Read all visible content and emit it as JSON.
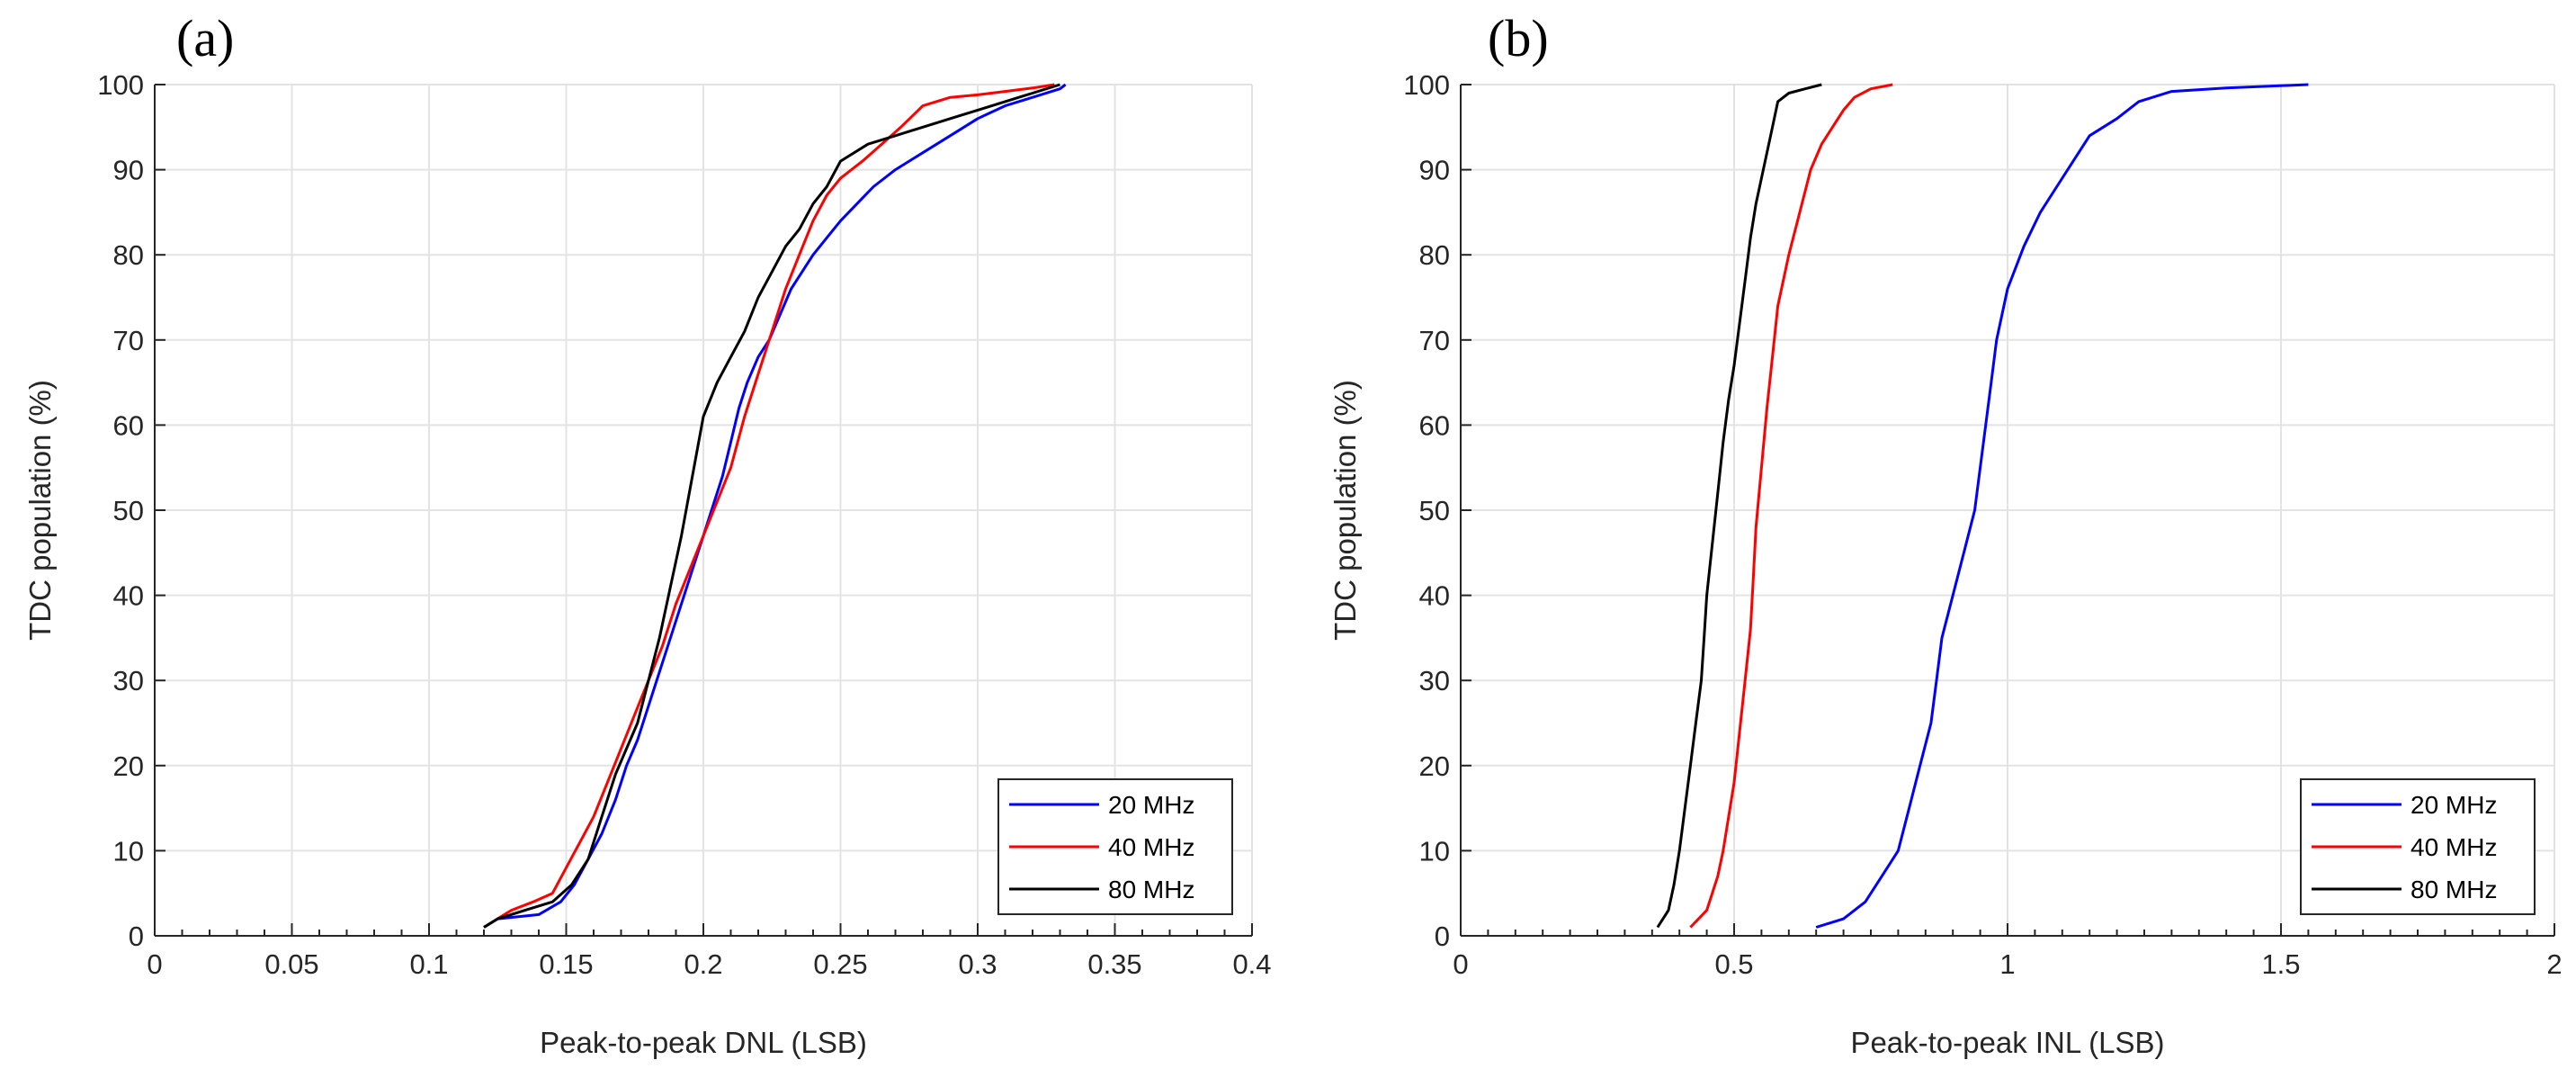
{
  "chart_data": [
    {
      "type": "line",
      "panel_label": "(a)",
      "title": "",
      "xlabel": "Peak-to-peak DNL (LSB)",
      "ylabel": "TDC population (%)",
      "xlim": [
        0,
        0.4
      ],
      "ylim": [
        0,
        100
      ],
      "xticks": [
        0,
        0.05,
        0.1,
        0.15,
        0.2,
        0.25,
        0.3,
        0.35,
        0.4
      ],
      "xtick_labels": [
        "0",
        "0.05",
        "0.1",
        "0.15",
        "0.2",
        "0.25",
        "0.3",
        "0.35",
        "0.4"
      ],
      "yticks": [
        0,
        10,
        20,
        30,
        40,
        50,
        60,
        70,
        80,
        90,
        100
      ],
      "ytick_labels": [
        "0",
        "10",
        "20",
        "30",
        "40",
        "50",
        "60",
        "70",
        "80",
        "90",
        "100"
      ],
      "grid": true,
      "legend_position": "bottom-right",
      "series": [
        {
          "name": "20 MHz",
          "color": "#0000ff",
          "x": [
            0.12,
            0.125,
            0.14,
            0.148,
            0.153,
            0.158,
            0.163,
            0.168,
            0.172,
            0.176,
            0.18,
            0.184,
            0.188,
            0.192,
            0.196,
            0.2,
            0.204,
            0.207,
            0.21,
            0.213,
            0.216,
            0.22,
            0.224,
            0.228,
            0.232,
            0.236,
            0.24,
            0.245,
            0.25,
            0.256,
            0.262,
            0.27,
            0.28,
            0.29,
            0.3,
            0.31,
            0.32,
            0.33,
            0.332
          ],
          "y": [
            1,
            2,
            2.5,
            4,
            6,
            9,
            12,
            16,
            20,
            23,
            27,
            31,
            35,
            39,
            43,
            47,
            51,
            54,
            58,
            62,
            65,
            68,
            70,
            73,
            76,
            78,
            80,
            82,
            84,
            86,
            88,
            90,
            92,
            94,
            96,
            97.5,
            98.5,
            99.5,
            100
          ]
        },
        {
          "name": "40 MHz",
          "color": "#ff0000",
          "x": [
            0.12,
            0.13,
            0.138,
            0.145,
            0.15,
            0.155,
            0.16,
            0.165,
            0.17,
            0.175,
            0.18,
            0.185,
            0.19,
            0.195,
            0.2,
            0.205,
            0.21,
            0.215,
            0.22,
            0.225,
            0.23,
            0.235,
            0.24,
            0.245,
            0.25,
            0.258,
            0.265,
            0.272,
            0.28,
            0.29,
            0.3,
            0.31,
            0.32,
            0.328
          ],
          "y": [
            1,
            3,
            4,
            5,
            8,
            11,
            14,
            18,
            22,
            26,
            30,
            34,
            39,
            43,
            47,
            51,
            55,
            61,
            66,
            71,
            76,
            80,
            84,
            87,
            89,
            91,
            93,
            95,
            97.5,
            98.5,
            98.8,
            99.2,
            99.6,
            100
          ]
        },
        {
          "name": "80 MHz",
          "color": "#000000",
          "x": [
            0.12,
            0.125,
            0.135,
            0.145,
            0.152,
            0.158,
            0.163,
            0.168,
            0.172,
            0.176,
            0.18,
            0.184,
            0.188,
            0.192,
            0.196,
            0.2,
            0.205,
            0.21,
            0.215,
            0.22,
            0.225,
            0.23,
            0.235,
            0.24,
            0.245,
            0.25,
            0.26,
            0.27,
            0.28,
            0.29,
            0.3,
            0.31,
            0.32,
            0.33
          ],
          "y": [
            1,
            2,
            3,
            4,
            6,
            9,
            14,
            19,
            22,
            25,
            30,
            35,
            41,
            47,
            54,
            61,
            65,
            68,
            71,
            75,
            78,
            81,
            83,
            86,
            88,
            91,
            93,
            94,
            95,
            96,
            97,
            98,
            99,
            100
          ]
        }
      ]
    },
    {
      "type": "line",
      "panel_label": "(b)",
      "title": "",
      "xlabel": "Peak-to-peak INL (LSB)",
      "ylabel": "TDC population (%)",
      "xlim": [
        0,
        2
      ],
      "ylim": [
        0,
        100
      ],
      "xticks": [
        0,
        0.5,
        1,
        1.5,
        2
      ],
      "xtick_labels": [
        "0",
        "0.5",
        "1",
        "1.5",
        "2"
      ],
      "yticks": [
        0,
        10,
        20,
        30,
        40,
        50,
        60,
        70,
        80,
        90,
        100
      ],
      "ytick_labels": [
        "0",
        "10",
        "20",
        "30",
        "40",
        "50",
        "60",
        "70",
        "80",
        "90",
        "100"
      ],
      "grid": true,
      "legend_position": "bottom-right",
      "series": [
        {
          "name": "20 MHz",
          "color": "#0000ff",
          "x": [
            0.65,
            0.7,
            0.74,
            0.77,
            0.8,
            0.82,
            0.84,
            0.86,
            0.87,
            0.88,
            0.9,
            0.92,
            0.94,
            0.95,
            0.96,
            0.97,
            0.98,
            1.0,
            1.03,
            1.06,
            1.09,
            1.12,
            1.15,
            1.2,
            1.24,
            1.3,
            1.4,
            1.55
          ],
          "y": [
            1,
            2,
            4,
            7,
            10,
            15,
            20,
            25,
            30,
            35,
            40,
            45,
            50,
            55,
            60,
            65,
            70,
            76,
            81,
            85,
            88,
            91,
            94,
            96,
            98,
            99.2,
            99.6,
            100
          ]
        },
        {
          "name": "40 MHz",
          "color": "#ff0000",
          "x": [
            0.42,
            0.45,
            0.47,
            0.48,
            0.49,
            0.5,
            0.51,
            0.52,
            0.53,
            0.535,
            0.54,
            0.55,
            0.56,
            0.57,
            0.58,
            0.6,
            0.62,
            0.64,
            0.66,
            0.68,
            0.7,
            0.72,
            0.75,
            0.79
          ],
          "y": [
            1,
            3,
            7,
            10,
            14,
            18,
            24,
            30,
            36,
            42,
            48,
            55,
            62,
            68,
            74,
            80,
            85,
            90,
            93,
            95,
            97,
            98.5,
            99.5,
            100
          ]
        },
        {
          "name": "80 MHz",
          "color": "#000000",
          "x": [
            0.36,
            0.38,
            0.39,
            0.4,
            0.41,
            0.42,
            0.43,
            0.44,
            0.445,
            0.45,
            0.46,
            0.47,
            0.48,
            0.49,
            0.5,
            0.51,
            0.52,
            0.53,
            0.54,
            0.55,
            0.56,
            0.57,
            0.58,
            0.6,
            0.63,
            0.66
          ],
          "y": [
            1,
            3,
            6,
            10,
            15,
            20,
            25,
            30,
            35,
            40,
            46,
            52,
            58,
            63,
            67,
            72,
            77,
            82,
            86,
            89,
            92,
            95,
            98,
            99,
            99.5,
            100
          ]
        }
      ]
    }
  ]
}
